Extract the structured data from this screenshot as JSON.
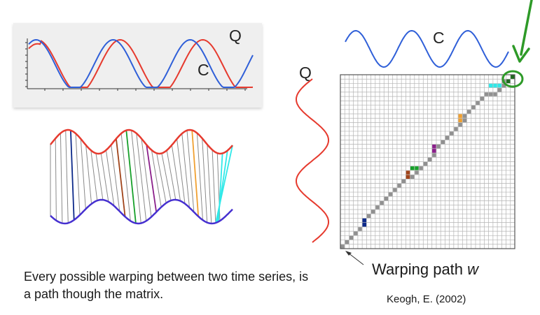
{
  "top_chart": {
    "label_q": "Q",
    "label_c": "C",
    "colors": {
      "q": "#e63a2e",
      "c": "#2f5fd8"
    }
  },
  "matrix": {
    "label_c": "C",
    "label_q": "Q",
    "path_label_prefix": "Warping path ",
    "path_label_var": "w",
    "grid_size": 40,
    "highlight_colors": [
      "#0d2a8a",
      "#a0441a",
      "#17a02a",
      "#8a1f8a",
      "#f0a030",
      "#30e8e8"
    ]
  },
  "caption": "Every possible warping between two time series, is a path though the matrix.",
  "citation": "Keogh, E. (2002)",
  "colors": {
    "accent_arrow": "#2e9a28",
    "grid_line": "#9a9a9a",
    "path_gray": "#909090"
  }
}
